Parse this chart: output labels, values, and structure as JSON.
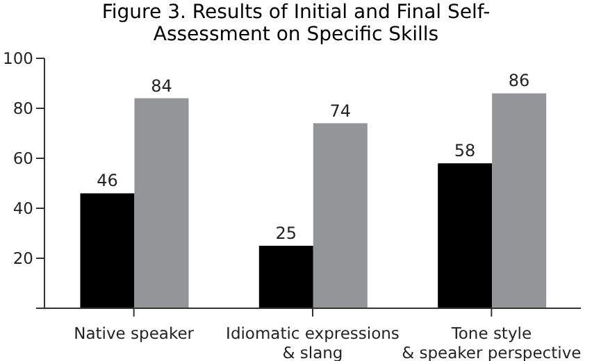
{
  "chart_data": {
    "type": "bar",
    "title": "Figure 3. Results of Initial and Final Self-Assessment on Specific Skills",
    "categories": [
      "Native speaker",
      "Idiomatic expressions\n& slang",
      "Tone style\n& speaker perspective"
    ],
    "series": [
      {
        "color": "#000000",
        "values": [
          46,
          25,
          58
        ]
      },
      {
        "color": "#939598",
        "values": [
          84,
          74,
          86
        ]
      }
    ],
    "ylim": [
      0,
      100
    ],
    "yticks": [
      {
        "value": 0,
        "label": null
      },
      20,
      40,
      60,
      80,
      100
    ],
    "data_labels": true
  }
}
